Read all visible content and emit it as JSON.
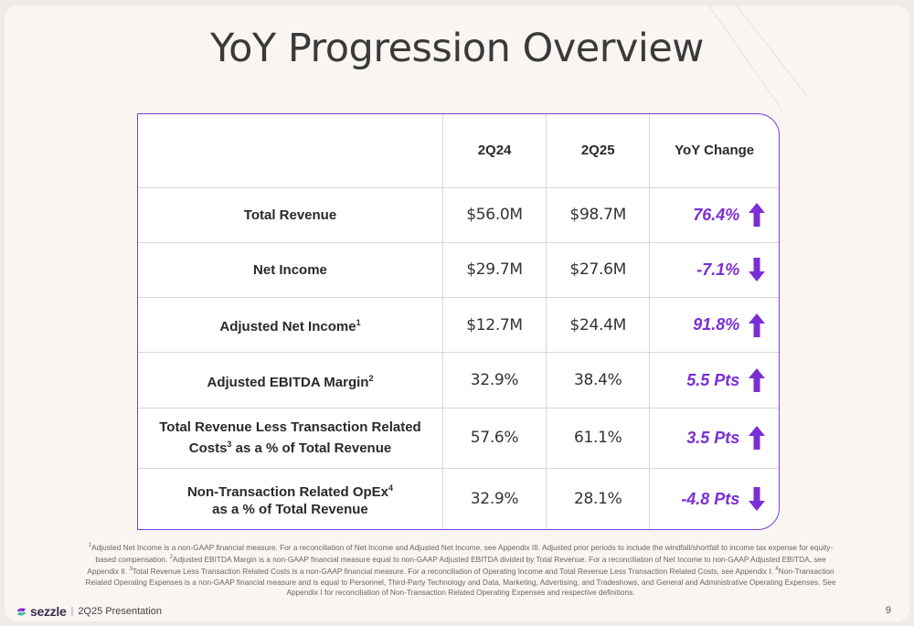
{
  "title": "YoY Progression Overview",
  "table": {
    "headers": [
      "",
      "2Q24",
      "2Q25",
      "YoY Change"
    ],
    "rows": [
      {
        "metric": "Total Revenue",
        "metric_line2": "",
        "sup": "",
        "sup2": "",
        "q24": "$56.0M",
        "q25": "$98.7M",
        "change": "76.4%",
        "direction": "up"
      },
      {
        "metric": "Net Income",
        "metric_line2": "",
        "sup": "",
        "sup2": "",
        "q24": "$29.7M",
        "q25": "$27.6M",
        "change": "-7.1%",
        "direction": "down"
      },
      {
        "metric": "Adjusted Net Income",
        "metric_line2": "",
        "sup": "1",
        "sup2": "",
        "q24": "$12.7M",
        "q25": "$24.4M",
        "change": "91.8%",
        "direction": "up"
      },
      {
        "metric": "Adjusted EBITDA Margin",
        "metric_line2": "",
        "sup": "2",
        "sup2": "",
        "q24": "32.9%",
        "q25": "38.4%",
        "change": "5.5 Pts",
        "direction": "up"
      },
      {
        "metric": "Total Revenue Less Transaction Related",
        "metric_line2_a": "Costs",
        "sup2": "3",
        "metric_line2_b": " as a % of Total Revenue",
        "q24": "57.6%",
        "q25": "61.1%",
        "change": "3.5 Pts",
        "direction": "up"
      },
      {
        "metric": "Non-Transaction Related OpEx",
        "sup": "4",
        "metric_line2": "as a % of Total Revenue",
        "q24": "32.9%",
        "q25": "28.1%",
        "change": "-4.8 Pts",
        "direction": "down"
      }
    ]
  },
  "footnotes": [
    {
      "n": "1",
      "text": "Adjusted Net Income is a non-GAAP financial measure. For a reconciliation of Net Income and Adjusted Net Income, see Appendix III. Adjusted prior periods to include the windfall/shortfall to income tax expense for equity-based compensation. "
    },
    {
      "n": "2",
      "text": "Adjusted EBITDA Margin is a non-GAAP financial measure equal to non-GAAP Adjusted EBITDA divided by Total Revenue. For a reconciliation of Net Income to non-GAAP Adjusted EBITDA, see Appendix II. "
    },
    {
      "n": "3",
      "text": "Total Revenue Less Transaction Related Costs is a non-GAAP financial measure. For a reconciliation of Operating Income and Total Revenue Less Transaction Related Costs, see Appendix I. "
    },
    {
      "n": "4",
      "text": "Non-Transaction Related Operating Expenses is a non-GAAP financial measure and is equal to Personnel, Third-Party Technology and Data, Marketing, Advertising, and Tradeshows, and General and Administrative Operating Expenses. See Appendix I for reconciliation of Non-Transaction Related Operating Expenses and respective definitions."
    }
  ],
  "brand": {
    "logo_text": "sezzle",
    "separator": "|",
    "presentation": "2Q25 Presentation"
  },
  "page_number": "9",
  "colors": {
    "accent": "#7b2ed6",
    "border": "#7b3fe4",
    "background": "#f9f6f2"
  }
}
